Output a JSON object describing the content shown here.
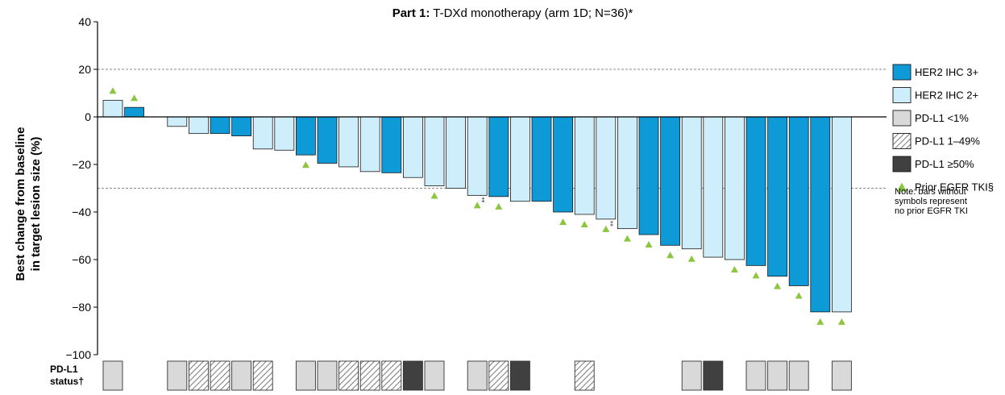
{
  "colors": {
    "her2_3": "#0E9AD7",
    "her2_2": "#CDEEFA",
    "pdl1_lt1": "#D9D9D9",
    "pdl1_1_49_hatch": "#6a6a6a",
    "pdl1_ge50": "#404040",
    "prior_egfr": "#8CC63F",
    "axis": "#000000",
    "refline": "#888888"
  },
  "chart_data": {
    "type": "bar",
    "title_bold": "Part 1:",
    "title_rest": " T-DXd monotherapy (arm 1D; N=36)*",
    "ylabel_line1": "Best change from baseline",
    "ylabel_line2": "in target lesion size (%)",
    "ylim": [
      -100,
      40
    ],
    "yticks": [
      {
        "value": 40,
        "label": "40"
      },
      {
        "value": 20,
        "label": "20"
      },
      {
        "value": 0,
        "label": "0"
      },
      {
        "value": -20,
        "label": "−20"
      },
      {
        "value": -40,
        "label": "−40"
      },
      {
        "value": -60,
        "label": "−60"
      },
      {
        "value": -80,
        "label": "−80"
      },
      {
        "value": -100,
        "label": "−100"
      }
    ],
    "reference_lines": [
      20,
      -30
    ],
    "status_row_label_line1": "PD-L1",
    "status_row_label_line2": "status†",
    "bars": [
      {
        "value": 7,
        "her2": "2+",
        "pdl1": "lt1",
        "prior_egfr": true
      },
      {
        "value": 4,
        "her2": "3+",
        "pdl1": null,
        "prior_egfr": true
      },
      {
        "value": 0,
        "her2": null,
        "pdl1": null,
        "prior_egfr": false
      },
      {
        "value": -4,
        "her2": "2+",
        "pdl1": "lt1",
        "prior_egfr": false
      },
      {
        "value": -7,
        "her2": "2+",
        "pdl1": "1-49",
        "prior_egfr": false
      },
      {
        "value": -7,
        "her2": "3+",
        "pdl1": "1-49",
        "prior_egfr": false
      },
      {
        "value": -8,
        "her2": "3+",
        "pdl1": "lt1",
        "prior_egfr": false
      },
      {
        "value": -13.5,
        "her2": "2+",
        "pdl1": "1-49",
        "prior_egfr": false
      },
      {
        "value": -14,
        "her2": "2+",
        "pdl1": null,
        "prior_egfr": false
      },
      {
        "value": -16,
        "her2": "3+",
        "pdl1": "lt1",
        "prior_egfr": true
      },
      {
        "value": -19.5,
        "her2": "3+",
        "pdl1": "lt1",
        "prior_egfr": false
      },
      {
        "value": -21,
        "her2": "2+",
        "pdl1": "1-49",
        "prior_egfr": false
      },
      {
        "value": -23,
        "her2": "2+",
        "pdl1": "1-49",
        "prior_egfr": false
      },
      {
        "value": -23.5,
        "her2": "3+",
        "pdl1": "1-49",
        "prior_egfr": false
      },
      {
        "value": -25.5,
        "her2": "2+",
        "pdl1": "ge50",
        "prior_egfr": false
      },
      {
        "value": -29,
        "her2": "2+",
        "pdl1": "lt1",
        "prior_egfr": true
      },
      {
        "value": -30,
        "her2": "2+",
        "pdl1": null,
        "prior_egfr": false
      },
      {
        "value": -33,
        "her2": "2+",
        "pdl1": "lt1",
        "prior_egfr": true,
        "mark": "‡"
      },
      {
        "value": -33.5,
        "her2": "3+",
        "pdl1": "1-49",
        "prior_egfr": true
      },
      {
        "value": -35.5,
        "her2": "2+",
        "pdl1": "ge50",
        "prior_egfr": false
      },
      {
        "value": -35.5,
        "her2": "3+",
        "pdl1": null,
        "prior_egfr": false
      },
      {
        "value": -40,
        "her2": "3+",
        "pdl1": null,
        "prior_egfr": true
      },
      {
        "value": -41,
        "her2": "2+",
        "pdl1": "1-49",
        "prior_egfr": true
      },
      {
        "value": -43,
        "her2": "2+",
        "pdl1": null,
        "prior_egfr": true,
        "mark": "‡"
      },
      {
        "value": -47,
        "her2": "2+",
        "pdl1": null,
        "prior_egfr": true
      },
      {
        "value": -49.5,
        "her2": "3+",
        "pdl1": null,
        "prior_egfr": true
      },
      {
        "value": -54,
        "her2": "3+",
        "pdl1": null,
        "prior_egfr": true
      },
      {
        "value": -55.5,
        "her2": "2+",
        "pdl1": "lt1",
        "prior_egfr": true
      },
      {
        "value": -59,
        "her2": "2+",
        "pdl1": "ge50",
        "prior_egfr": false
      },
      {
        "value": -60,
        "her2": "2+",
        "pdl1": null,
        "prior_egfr": true
      },
      {
        "value": -62.5,
        "her2": "3+",
        "pdl1": "lt1",
        "prior_egfr": true
      },
      {
        "value": -67,
        "her2": "3+",
        "pdl1": "lt1",
        "prior_egfr": true
      },
      {
        "value": -71,
        "her2": "3+",
        "pdl1": "lt1",
        "prior_egfr": true
      },
      {
        "value": -82,
        "her2": "3+",
        "pdl1": null,
        "prior_egfr": true
      },
      {
        "value": -82,
        "her2": "2+",
        "pdl1": "lt1",
        "prior_egfr": true
      }
    ],
    "legend": [
      {
        "kind": "her2_3",
        "label": "HER2 IHC 3+"
      },
      {
        "kind": "her2_2",
        "label": "HER2 IHC 2+"
      },
      {
        "kind": "pdl1_lt1",
        "label": "PD-L1 <1%"
      },
      {
        "kind": "pdl1_1_49",
        "label": "PD-L1 1–49%"
      },
      {
        "kind": "pdl1_ge50",
        "label": "PD-L1 ≥50%"
      },
      {
        "kind": "prior_egfr",
        "label": "Prior EGFR TKI§"
      }
    ],
    "note_lines": [
      "Note: bars without",
      "symbols represent",
      "no prior EGFR TKI"
    ],
    "legend_position": "right"
  }
}
